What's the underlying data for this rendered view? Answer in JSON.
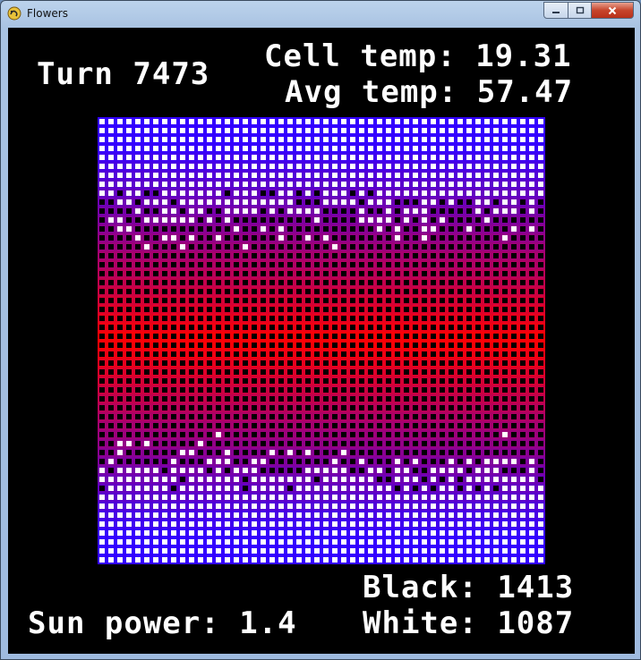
{
  "window": {
    "title": "Flowers",
    "icons": {
      "app": "pygame-snake-icon",
      "minimize": "minimize-icon",
      "maximize": "maximize-icon",
      "close": "close-icon"
    }
  },
  "hud": {
    "turn_label": "Turn",
    "turn_value": "7473",
    "cell_temp_label": "Cell temp:",
    "cell_temp_value": "19.31",
    "avg_temp_label": "Avg temp:",
    "avg_temp_value": "57.47",
    "black_label": "Black:",
    "black_value": "1413",
    "white_label": "White:",
    "white_value": "1087",
    "sun_power_label": "Sun power:",
    "sun_power_value": "1.4"
  },
  "simulation": {
    "grid_size": 50,
    "black_flower_count": 1413,
    "white_flower_count": 1087,
    "cold_color": "#3300ff",
    "hot_color": "#ff0000",
    "white_flower_color": "#ffffff",
    "black_flower_color": "#000000"
  }
}
